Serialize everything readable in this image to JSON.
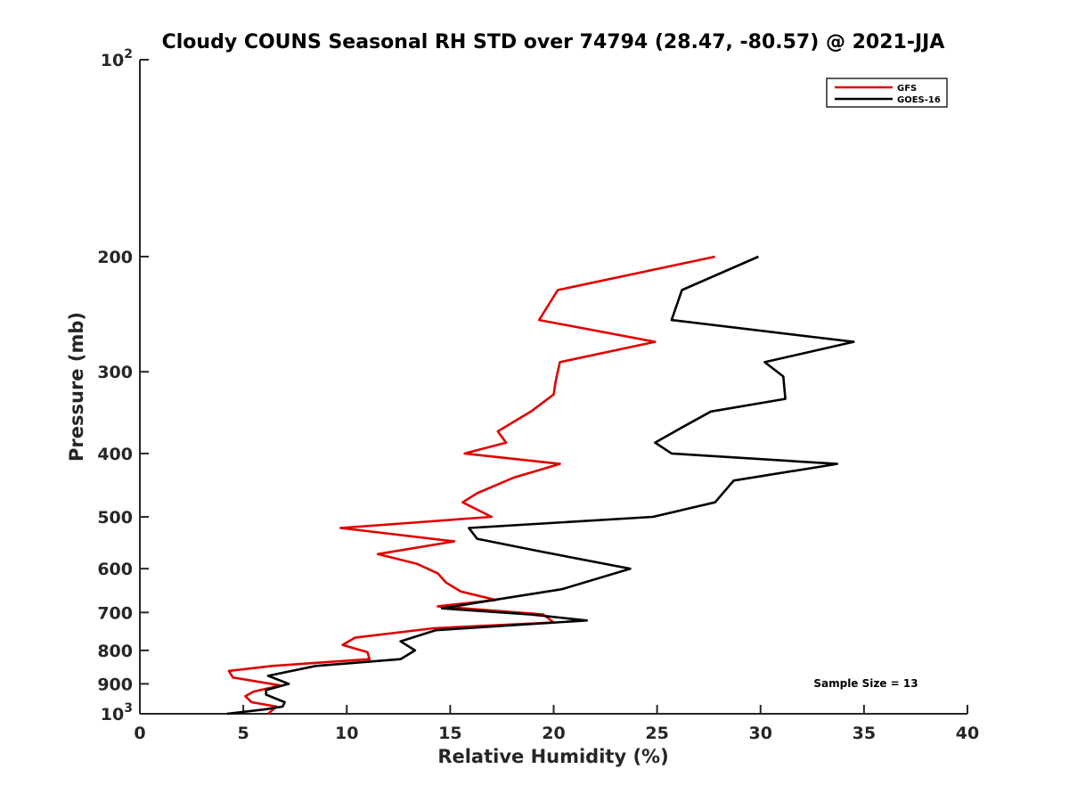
{
  "chart_data": {
    "type": "line",
    "title": "Cloudy COUNS Seasonal RH STD over 74794 (28.47, -80.57) @ 2021-JJA",
    "xlabel": "Relative Humidity (%)",
    "ylabel": "Pressure (mb)",
    "xlim": [
      0,
      40
    ],
    "ylim": [
      100,
      1000
    ],
    "yscale": "log",
    "yreverse": true,
    "grid": false,
    "legend_position": "top-right",
    "x_ticks": [
      0,
      5,
      10,
      15,
      20,
      25,
      30,
      35,
      40
    ],
    "x_tick_labels": [
      "0",
      "5",
      "10",
      "15",
      "20",
      "25",
      "30",
      "35",
      "40"
    ],
    "y_ticks": [
      100,
      200,
      300,
      400,
      500,
      600,
      700,
      800,
      900,
      1000
    ],
    "y_tick_labels": [
      {
        "base": "10",
        "exp": "2"
      },
      {
        "base": "200",
        "exp": ""
      },
      {
        "base": "300",
        "exp": ""
      },
      {
        "base": "400",
        "exp": ""
      },
      {
        "base": "500",
        "exp": ""
      },
      {
        "base": "600",
        "exp": ""
      },
      {
        "base": "700",
        "exp": ""
      },
      {
        "base": "800",
        "exp": ""
      },
      {
        "base": "900",
        "exp": ""
      },
      {
        "base": "10",
        "exp": "3"
      }
    ],
    "series": [
      {
        "name": "GFS",
        "color": "#e00000",
        "points": [
          [
            27.8,
            200
          ],
          [
            20.2,
            225
          ],
          [
            19.3,
            250
          ],
          [
            24.9,
            270
          ],
          [
            20.3,
            290
          ],
          [
            20.1,
            310
          ],
          [
            20.0,
            325
          ],
          [
            18.9,
            345
          ],
          [
            17.3,
            370
          ],
          [
            17.7,
            385
          ],
          [
            15.7,
            400
          ],
          [
            20.3,
            415
          ],
          [
            18.1,
            435
          ],
          [
            16.3,
            460
          ],
          [
            15.6,
            475
          ],
          [
            17.0,
            500
          ],
          [
            9.7,
            520
          ],
          [
            15.2,
            545
          ],
          [
            11.5,
            570
          ],
          [
            13.4,
            590
          ],
          [
            14.4,
            610
          ],
          [
            14.8,
            630
          ],
          [
            15.5,
            650
          ],
          [
            17.2,
            670
          ],
          [
            14.4,
            685
          ],
          [
            19.5,
            705
          ],
          [
            20.0,
            725
          ],
          [
            14.2,
            740
          ],
          [
            10.4,
            765
          ],
          [
            9.8,
            785
          ],
          [
            11.0,
            805
          ],
          [
            11.1,
            825
          ],
          [
            6.4,
            845
          ],
          [
            4.3,
            860
          ],
          [
            4.5,
            880
          ],
          [
            6.8,
            905
          ],
          [
            5.5,
            925
          ],
          [
            5.1,
            940
          ],
          [
            5.4,
            960
          ],
          [
            6.6,
            975
          ],
          [
            6.2,
            1000
          ]
        ]
      },
      {
        "name": "GOES-16",
        "color": "#000000",
        "points": [
          [
            29.9,
            200
          ],
          [
            26.2,
            225
          ],
          [
            25.7,
            250
          ],
          [
            34.5,
            270
          ],
          [
            30.2,
            290
          ],
          [
            31.1,
            305
          ],
          [
            31.2,
            330
          ],
          [
            27.6,
            345
          ],
          [
            26.2,
            365
          ],
          [
            24.9,
            385
          ],
          [
            25.7,
            400
          ],
          [
            33.7,
            415
          ],
          [
            28.7,
            440
          ],
          [
            27.8,
            475
          ],
          [
            24.8,
            500
          ],
          [
            15.9,
            520
          ],
          [
            16.3,
            540
          ],
          [
            19.4,
            565
          ],
          [
            23.7,
            600
          ],
          [
            20.4,
            645
          ],
          [
            17.1,
            670
          ],
          [
            14.6,
            690
          ],
          [
            18.9,
            705
          ],
          [
            21.6,
            720
          ],
          [
            14.3,
            745
          ],
          [
            12.6,
            775
          ],
          [
            13.3,
            800
          ],
          [
            12.6,
            825
          ],
          [
            8.5,
            845
          ],
          [
            6.2,
            875
          ],
          [
            7.2,
            900
          ],
          [
            6.1,
            920
          ],
          [
            6.1,
            935
          ],
          [
            7.0,
            960
          ],
          [
            6.9,
            975
          ],
          [
            6.0,
            985
          ],
          [
            4.2,
            1000
          ]
        ]
      }
    ],
    "annotations": [
      "Sample Size = 13"
    ]
  }
}
